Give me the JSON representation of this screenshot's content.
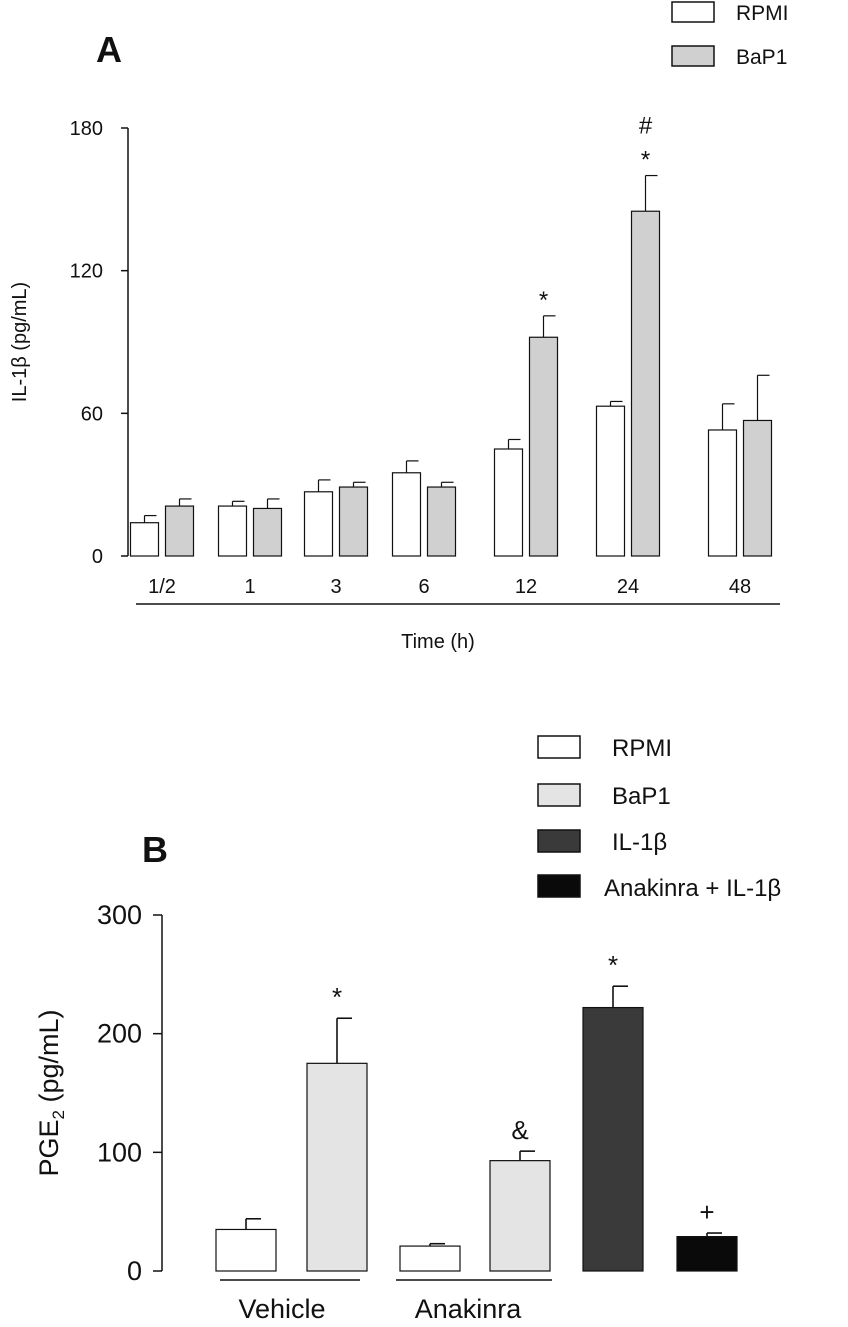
{
  "colors": {
    "rpmi": "#ffffff",
    "bap1": "#d0d0d0",
    "bap1_b": "#e4e4e4",
    "il1b": "#3a3a3a",
    "anakinra_il1b": "#0a0a0a",
    "stroke": "#111111"
  },
  "chart_data": [
    {
      "panel": "A",
      "type": "bar",
      "ylabel": "IL-1β (pg/mL)",
      "xlabel": "Time (h)",
      "ylim": [
        0,
        180
      ],
      "yticks": [
        "0",
        "60",
        "120",
        "180"
      ],
      "ytick_values": [
        0,
        60,
        120,
        180
      ],
      "categories": [
        "1/2",
        "1",
        "3",
        "6",
        "12",
        "24",
        "48"
      ],
      "legend": [
        "RPMI",
        "BaP1"
      ],
      "series": [
        {
          "name": "RPMI",
          "values": [
            14,
            21,
            27,
            35,
            45,
            63,
            53
          ],
          "errors": [
            3,
            2,
            5,
            5,
            4,
            2,
            11
          ]
        },
        {
          "name": "BaP1",
          "values": [
            21,
            20,
            29,
            29,
            92,
            145,
            57
          ],
          "errors": [
            3,
            4,
            2,
            2,
            9,
            15,
            19
          ]
        }
      ],
      "annotations": [
        {
          "category": "12",
          "series": "BaP1",
          "text": "*"
        },
        {
          "category": "24",
          "series": "BaP1",
          "text": "*"
        },
        {
          "category": "24",
          "series": "BaP1",
          "text": "#"
        }
      ]
    },
    {
      "panel": "B",
      "type": "bar",
      "ylabel": "PGE",
      "ylabel_sub": "2",
      "ylabel_units": " (pg/mL)",
      "ylim": [
        0,
        300
      ],
      "yticks": [
        "0",
        "100",
        "200",
        "300"
      ],
      "ytick_values": [
        0,
        100,
        200,
        300
      ],
      "groups": [
        "Vehicle",
        "Anakinra"
      ],
      "legend": [
        "RPMI",
        "BaP1",
        "IL-1β",
        "Anakinra + IL-1β"
      ],
      "bars": [
        {
          "label": "RPMI",
          "group": "Vehicle",
          "value": 35,
          "error": 9,
          "annotation": ""
        },
        {
          "label": "BaP1",
          "group": "Vehicle",
          "value": 175,
          "error": 38,
          "annotation": "*"
        },
        {
          "label": "RPMI",
          "group": "Anakinra",
          "value": 21,
          "error": 2,
          "annotation": ""
        },
        {
          "label": "BaP1",
          "group": "Anakinra",
          "value": 93,
          "error": 8,
          "annotation": "&"
        },
        {
          "label": "IL-1β",
          "group": "",
          "value": 222,
          "error": 18,
          "annotation": "*"
        },
        {
          "label": "Anakinra + IL-1β",
          "group": "",
          "value": 29,
          "error": 3,
          "annotation": "+"
        }
      ]
    }
  ]
}
